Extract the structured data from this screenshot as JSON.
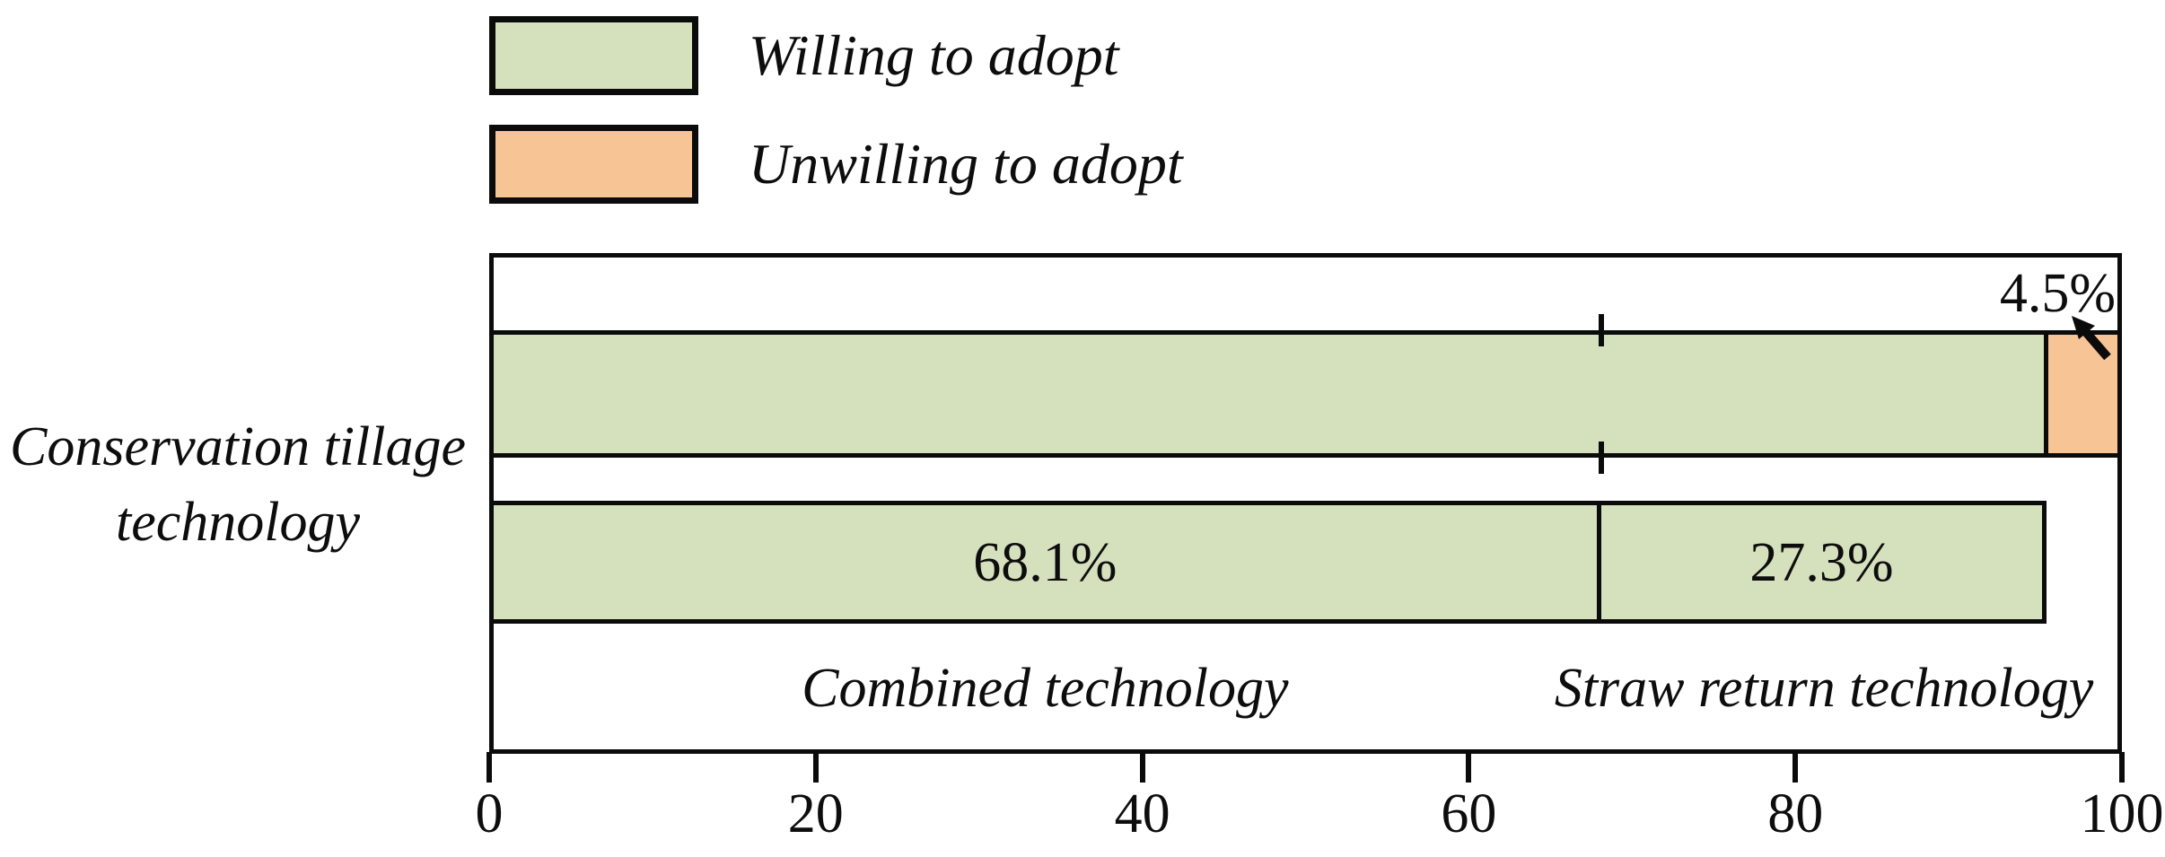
{
  "chart_data": {
    "type": "bar",
    "orientation": "horizontal-stacked",
    "title": "",
    "category_label_lines": [
      "Conservation tillage",
      "technology"
    ],
    "legend": [
      {
        "label": "Willing to adopt",
        "color": "#d5e0bd"
      },
      {
        "label": "Unwilling to adopt",
        "color": "#f7c495"
      }
    ],
    "legend_position": "top-left",
    "x_axis": {
      "min": 0,
      "max": 100,
      "ticks": [
        0,
        20,
        40,
        60,
        80,
        100
      ],
      "grid": false
    },
    "bars": {
      "overall": {
        "category": "Conservation tillage technology",
        "willing_value": 95.5,
        "unwilling_value": 4.5,
        "unwilling_label": "4.5%",
        "split_tick_at": 68.1
      },
      "by_technology": {
        "segments": [
          {
            "label": "68.1%",
            "value": 68.1,
            "caption": "Combined technology",
            "series": "Willing to adopt"
          },
          {
            "label": "27.3%",
            "value": 27.3,
            "caption": "Straw return technology",
            "series": "Willing to adopt"
          }
        ]
      }
    },
    "colors": {
      "willing": "#d5e0bd",
      "unwilling": "#f7c495",
      "line": "#0b0b0b"
    }
  }
}
